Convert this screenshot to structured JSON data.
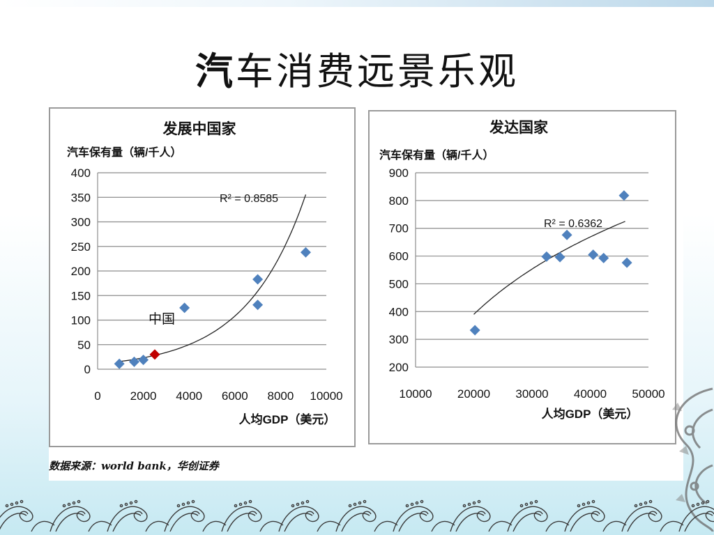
{
  "slide": {
    "title_first": "汽",
    "title_rest": "车消费远景乐观",
    "source": "数据来源：world bank，华创证券"
  },
  "chart_data": [
    {
      "type": "scatter",
      "title": "发展中国家",
      "ylabel": "汽车保有量（辆/千人）",
      "xlabel": "人均GDP（美元）",
      "xlim": [
        0,
        10000
      ],
      "ylim": [
        0,
        400
      ],
      "x_ticks": [
        0,
        2000,
        4000,
        6000,
        8000,
        10000
      ],
      "y_ticks": [
        0,
        50,
        100,
        150,
        200,
        250,
        300,
        350,
        400
      ],
      "grid": true,
      "points": [
        {
          "x": 950,
          "y": 11
        },
        {
          "x": 1600,
          "y": 15
        },
        {
          "x": 2000,
          "y": 19
        },
        {
          "x": 3800,
          "y": 125
        },
        {
          "x": 7000,
          "y": 183
        },
        {
          "x": 7000,
          "y": 131
        },
        {
          "x": 9100,
          "y": 238
        }
      ],
      "highlight": {
        "x": 2500,
        "y": 30,
        "label": "中国",
        "color": "#c00000"
      },
      "trendline": {
        "type": "exponential",
        "a": 10.8,
        "b": 0.000384,
        "x_from": 950,
        "x_to": 9100
      },
      "r2_label": "R² = 0.8585",
      "marker_color": "#4f81bd"
    },
    {
      "type": "scatter",
      "title": "发达国家",
      "ylabel": "汽车保有量（辆/千人）",
      "xlabel": "人均GDP（美元）",
      "xlim": [
        10000,
        50000
      ],
      "ylim": [
        200,
        900
      ],
      "x_ticks": [
        10000,
        20000,
        30000,
        40000,
        50000
      ],
      "y_ticks": [
        200,
        300,
        400,
        500,
        600,
        700,
        800,
        900
      ],
      "grid": true,
      "points": [
        {
          "x": 20200,
          "y": 333
        },
        {
          "x": 32500,
          "y": 598
        },
        {
          "x": 34800,
          "y": 596
        },
        {
          "x": 36000,
          "y": 676
        },
        {
          "x": 40500,
          "y": 605
        },
        {
          "x": 42300,
          "y": 593
        },
        {
          "x": 45800,
          "y": 818
        },
        {
          "x": 46300,
          "y": 576
        }
      ],
      "trendline": {
        "type": "log",
        "x_from": 20000,
        "x_to": 46000,
        "y_from": 390,
        "y_to": 725
      },
      "r2_label": "R² = 0.6362",
      "marker_color": "#4f81bd"
    }
  ]
}
